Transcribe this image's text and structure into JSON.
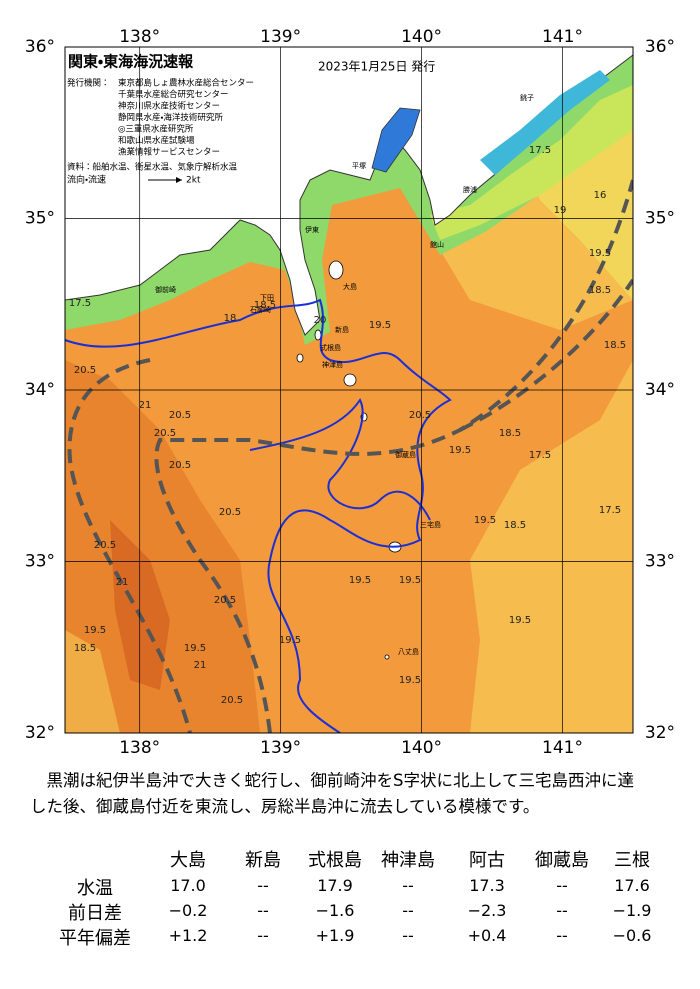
{
  "map": {
    "title": "関東・東海海況速報",
    "date": "2023年1月25日 発行",
    "issuer_heading": "発行機関：",
    "issuers": [
      "東京都島しょ農林水産総合センター",
      "千葉県水産総合研究センター",
      "神奈川県水産技術センター",
      "静岡県水産・海洋技術研究所",
      "◎三重県水産研究所",
      "和歌山県水産試験場",
      "漁業情報サービスセンター"
    ],
    "sources": "資料：船舶水温、衛星水温、気象庁解析水温",
    "current_legend": "流向・流速",
    "current_scale": "2kt",
    "xlim": [
      137.47,
      141.5
    ],
    "ylim": [
      32,
      36
    ],
    "lon_ticks": [
      {
        "value": 138,
        "label": "138°"
      },
      {
        "value": 139,
        "label": "139°"
      },
      {
        "value": 140,
        "label": "140°"
      },
      {
        "value": 141,
        "label": "141°"
      }
    ],
    "lat_ticks": [
      {
        "value": 32,
        "label": "32°"
      },
      {
        "value": 33,
        "label": "33°"
      },
      {
        "value": 34,
        "label": "34°"
      },
      {
        "value": 35,
        "label": "35°"
      },
      {
        "value": 36,
        "label": "36°"
      }
    ],
    "isotherm_labels": [
      "17.5",
      "18",
      "18.5",
      "19",
      "19.5",
      "20.5",
      "21",
      "20.5",
      "20.5",
      "20.5",
      "20.5",
      "20.5",
      "21",
      "20.5",
      "19.5",
      "18.5",
      "19.5",
      "21",
      "20.5",
      "19.5",
      "19.5",
      "19.5",
      "19.5",
      "19.5",
      "18.5",
      "17.5",
      "17.5",
      "18.5",
      "16",
      "17.5",
      "18.5",
      "19.5",
      "20",
      "19.5",
      "20.5",
      "18.5",
      "19.5"
    ],
    "place_names": [
      "大島",
      "新島",
      "式根島",
      "神津島",
      "三宅島",
      "御蔵島",
      "八丈島",
      "館山",
      "勝浦",
      "銚子",
      "平塚",
      "伊東",
      "下田",
      "石廊崎",
      "御前崎"
    ]
  },
  "summary": "黒潮は紀伊半島沖で大きく蛇行し、御前崎沖をS字状に北上して三宅島西沖に達した後、御蔵島付近を東流し、房総半島沖に流去している模様です。",
  "table": {
    "columns": [
      "大島",
      "新島",
      "式根島",
      "神津島",
      "阿古",
      "御蔵島",
      "三根"
    ],
    "rows": [
      {
        "label": "水温",
        "values": [
          "17.0",
          "--",
          "17.9",
          "--",
          "17.3",
          "--",
          "17.6"
        ]
      },
      {
        "label": "前日差",
        "values": [
          "−0.2",
          "--",
          "−1.6",
          "--",
          "−2.3",
          "--",
          "−1.9"
        ]
      },
      {
        "label": "平年偏差",
        "values": [
          "+1.2",
          "--",
          "+1.9",
          "--",
          "+0.4",
          "--",
          "−0.6"
        ]
      }
    ]
  }
}
